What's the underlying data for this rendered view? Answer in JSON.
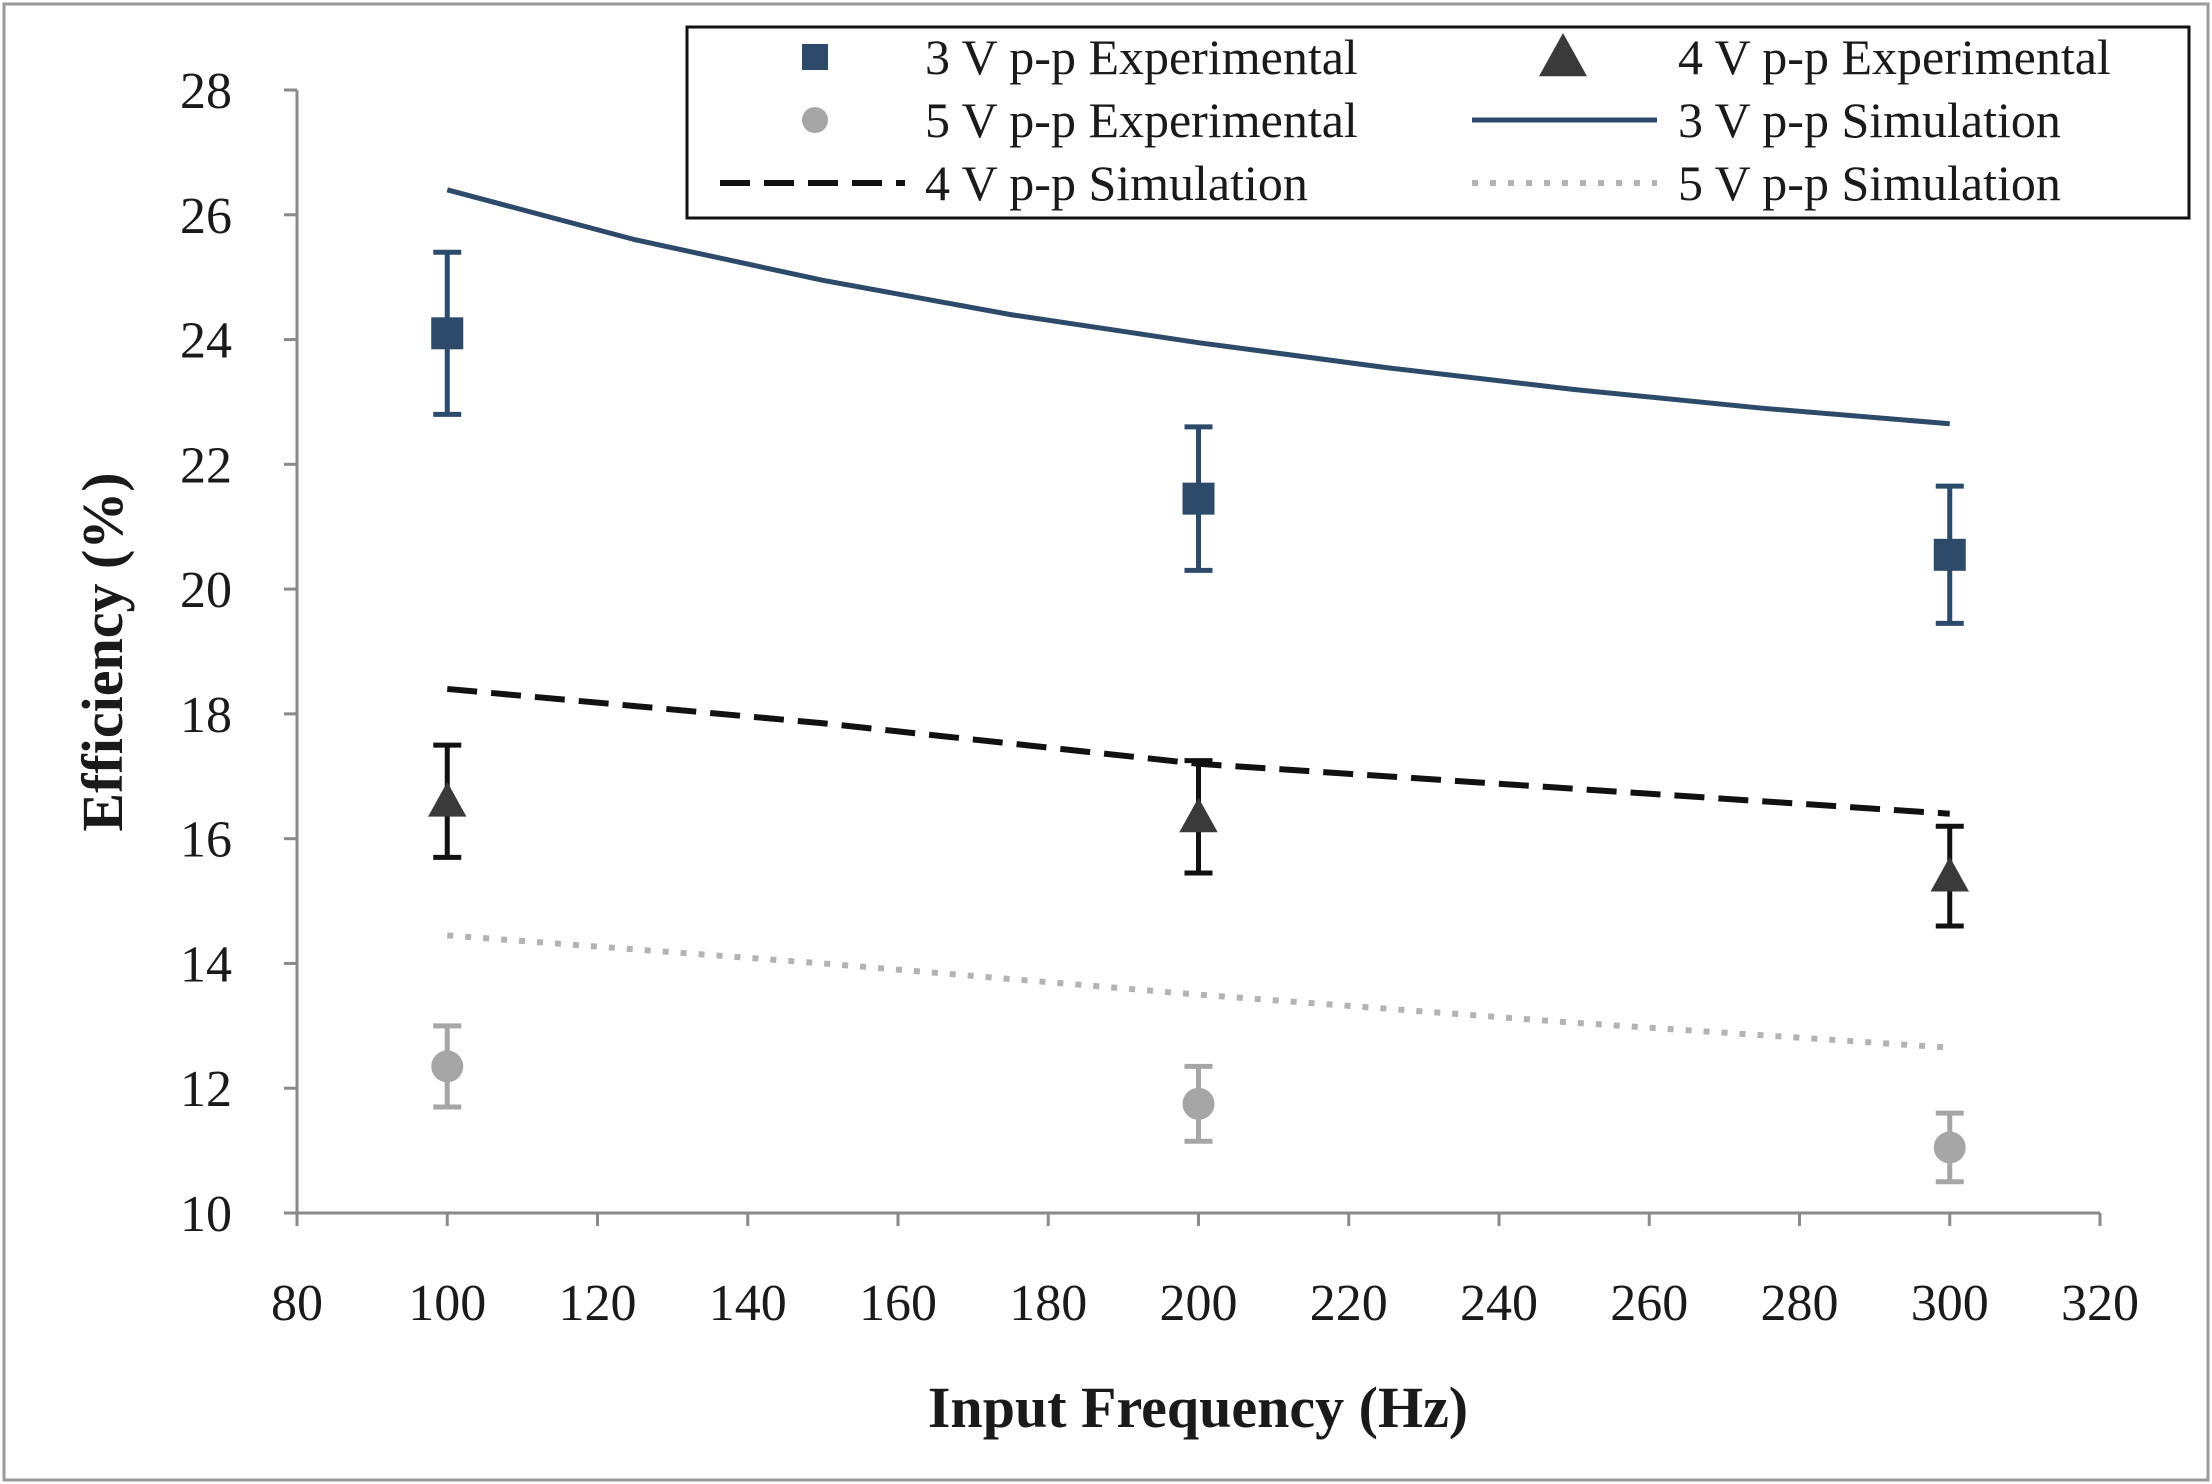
{
  "chart_data": {
    "type": "scatter",
    "title": "",
    "xlabel": "Input Frequency (Hz)",
    "ylabel": "Efficiency (%)",
    "xlim": [
      80,
      320
    ],
    "ylim": [
      10,
      28
    ],
    "xticks": [
      80,
      100,
      120,
      140,
      160,
      180,
      200,
      220,
      240,
      260,
      280,
      300,
      320
    ],
    "yticks": [
      10,
      12,
      14,
      16,
      18,
      20,
      22,
      24,
      26,
      28
    ],
    "legend_position": "top-right",
    "grid": false,
    "series": [
      {
        "name": "3 V p-p Experimental",
        "kind": "points",
        "marker": "square",
        "color": "#2d4a6b",
        "x": [
          100,
          200,
          300
        ],
        "y": [
          24.1,
          21.45,
          20.55
        ],
        "err": [
          1.3,
          1.15,
          1.1
        ]
      },
      {
        "name": "4 V p-p Experimental",
        "kind": "points",
        "marker": "triangle",
        "color": "#3a3a3a",
        "errColor": "#111111",
        "x": [
          100,
          200,
          300
        ],
        "y": [
          16.6,
          16.35,
          15.4
        ],
        "err": [
          0.9,
          0.9,
          0.8
        ]
      },
      {
        "name": "5 V p-p Experimental",
        "kind": "points",
        "marker": "circle",
        "color": "#a6a6a6",
        "x": [
          100,
          200,
          300
        ],
        "y": [
          12.35,
          11.75,
          11.05
        ],
        "err": [
          0.65,
          0.6,
          0.55
        ]
      },
      {
        "name": "3 V p-p Simulation",
        "kind": "line",
        "dash": "solid",
        "color": "#2d4a6b",
        "x": [
          100,
          125,
          150,
          175,
          200,
          225,
          250,
          275,
          300
        ],
        "y": [
          26.4,
          25.6,
          24.95,
          24.4,
          23.95,
          23.55,
          23.2,
          22.9,
          22.65
        ]
      },
      {
        "name": "4 V p-p Simulation",
        "kind": "line",
        "dash": "dashed",
        "color": "#111111",
        "x": [
          100,
          150,
          200,
          250,
          300
        ],
        "y": [
          18.4,
          17.85,
          17.2,
          16.8,
          16.4
        ]
      },
      {
        "name": "5 V p-p Simulation",
        "kind": "line",
        "dash": "dotted",
        "color": "#b3b3b3",
        "x": [
          100,
          150,
          200,
          250,
          300
        ],
        "y": [
          14.45,
          14.0,
          13.5,
          13.05,
          12.65
        ]
      }
    ]
  }
}
